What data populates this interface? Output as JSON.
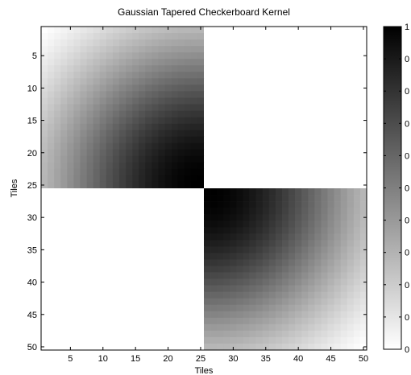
{
  "chart_data": {
    "type": "heatmap",
    "title": "Gaussian Tapered Checkerboard Kernel",
    "xlabel": "Tiles",
    "ylabel": "Tiles",
    "rows": 50,
    "cols": 50,
    "xlim": [
      0.5,
      50.5
    ],
    "ylim": [
      0.5,
      50.5
    ],
    "y_axis_direction": "reversed",
    "xticks": [
      5,
      10,
      15,
      20,
      25,
      30,
      35,
      40,
      45,
      50
    ],
    "yticks": [
      5,
      10,
      15,
      20,
      25,
      30,
      35,
      40,
      45,
      50
    ],
    "colormap": "gray (white = 0, black = 1)",
    "colorbar": {
      "placement": "right",
      "range": [
        0,
        1
      ],
      "tick_labels": [
        "1",
        "0",
        "0",
        "0",
        "0",
        "0",
        "0",
        "0",
        "0",
        "0",
        "0"
      ]
    },
    "quadrants": [
      {
        "rows": [
          1,
          25
        ],
        "cols": [
          1,
          25
        ],
        "pattern": "darkens toward (25,25)",
        "value_at_corner": 0.0,
        "value_at_center": 1.0
      },
      {
        "rows": [
          1,
          25
        ],
        "cols": [
          26,
          50
        ],
        "pattern": "flat",
        "value": 0.0
      },
      {
        "rows": [
          26,
          50
        ],
        "cols": [
          1,
          25
        ],
        "pattern": "flat",
        "value": 0.0
      },
      {
        "rows": [
          26,
          50
        ],
        "cols": [
          26,
          50
        ],
        "pattern": "darkens toward (26,26)",
        "value_at_corner": 0.0,
        "value_at_center": 1.0
      }
    ],
    "grid": false
  }
}
